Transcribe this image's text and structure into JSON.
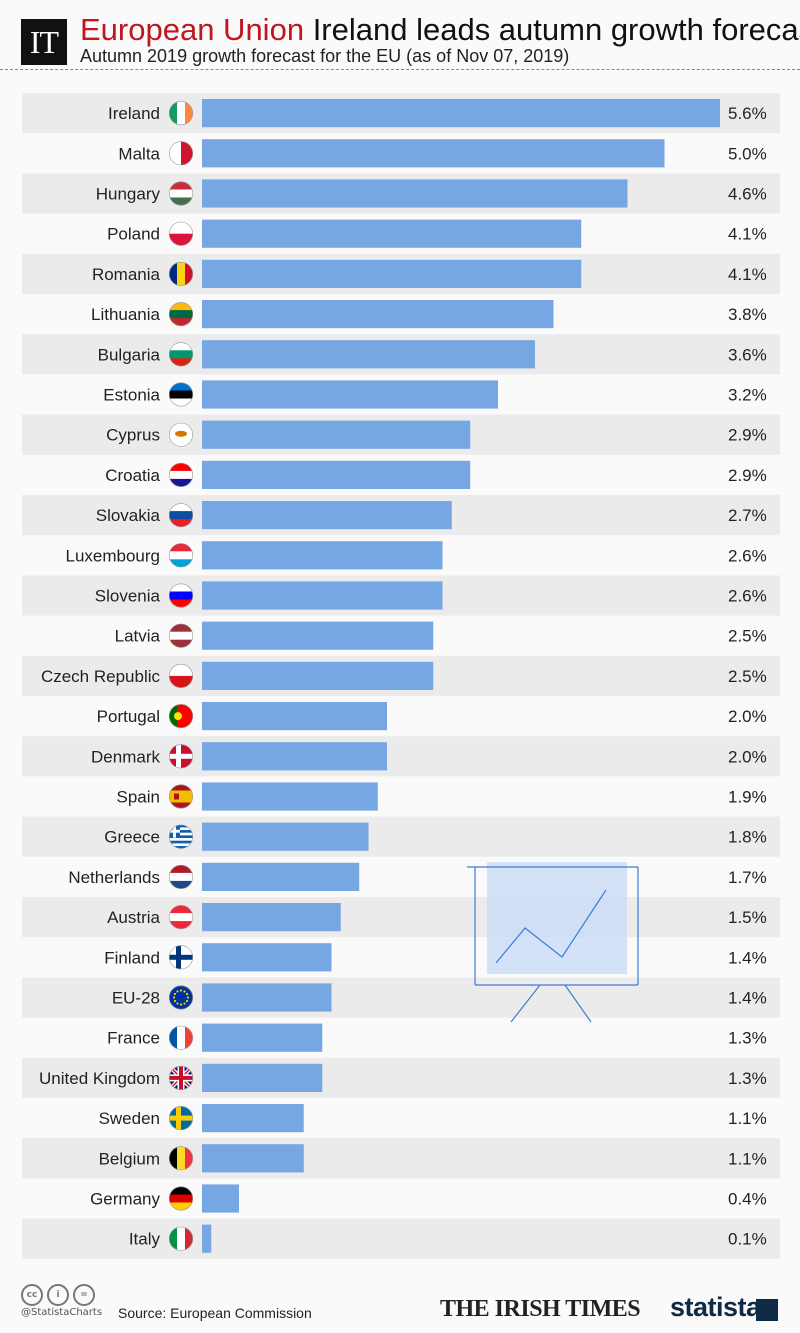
{
  "header": {
    "logo": "IT",
    "title_highlight": "European Union",
    "title": "Ireland leads autumn growth forecast",
    "subtitle": "Autumn 2019 growth forecast for the EU (as of Nov 07, 2019)"
  },
  "footer": {
    "handle": "@StatistaCharts",
    "source": "Source: European Commission",
    "brand_1": "THE IRISH TIMES",
    "brand_2": "statista",
    "license_icons": [
      "cc-icon",
      "attribution-icon",
      "no-derivatives-icon"
    ]
  },
  "colors": {
    "bar": "#77a7e3",
    "row_shade": "#ebebeb",
    "title_accent": "#c0161d"
  },
  "chart_data": {
    "type": "bar",
    "orientation": "horizontal",
    "title": "Ireland leads autumn growth forecast",
    "subtitle": "Autumn 2019 growth forecast for the EU (as of Nov 07, 2019)",
    "unit": "%",
    "xlim": [
      0,
      5.6
    ],
    "grid": false,
    "categories": [
      "Ireland",
      "Malta",
      "Hungary",
      "Poland",
      "Romania",
      "Lithuania",
      "Bulgaria",
      "Estonia",
      "Cyprus",
      "Croatia",
      "Slovakia",
      "Luxembourg",
      "Slovenia",
      "Latvia",
      "Czech Republic",
      "Portugal",
      "Denmark",
      "Spain",
      "Greece",
      "Netherlands",
      "Austria",
      "Finland",
      "EU-28",
      "France",
      "United Kingdom",
      "Sweden",
      "Belgium",
      "Germany",
      "Italy"
    ],
    "values": [
      5.6,
      5.0,
      4.6,
      4.1,
      4.1,
      3.8,
      3.6,
      3.2,
      2.9,
      2.9,
      2.7,
      2.6,
      2.6,
      2.5,
      2.5,
      2.0,
      2.0,
      1.9,
      1.8,
      1.7,
      1.5,
      1.4,
      1.4,
      1.3,
      1.3,
      1.1,
      1.1,
      0.4,
      0.1
    ],
    "labels": [
      "5.6%",
      "5.0%",
      "4.6%",
      "4.1%",
      "4.1%",
      "3.8%",
      "3.6%",
      "3.2%",
      "2.9%",
      "2.9%",
      "2.7%",
      "2.6%",
      "2.6%",
      "2.5%",
      "2.5%",
      "2.0%",
      "2.0%",
      "1.9%",
      "1.8%",
      "1.7%",
      "1.5%",
      "1.4%",
      "1.4%",
      "1.3%",
      "1.3%",
      "1.1%",
      "1.1%",
      "0.4%",
      "0.1%"
    ],
    "flags": [
      {
        "t": "v",
        "c": [
          "#169b62",
          "#ffffff",
          "#ff883e"
        ]
      },
      {
        "t": "v",
        "c": [
          "#ffffff",
          "#cf142b"
        ]
      },
      {
        "t": "h",
        "c": [
          "#cd2a3e",
          "#ffffff",
          "#436f4d"
        ]
      },
      {
        "t": "h",
        "c": [
          "#ffffff",
          "#dc143c"
        ]
      },
      {
        "t": "v",
        "c": [
          "#002b7f",
          "#fcd116",
          "#ce1126"
        ]
      },
      {
        "t": "h",
        "c": [
          "#fdb913",
          "#006a44",
          "#c1272d"
        ]
      },
      {
        "t": "h",
        "c": [
          "#ffffff",
          "#00966e",
          "#d62612"
        ]
      },
      {
        "t": "h",
        "c": [
          "#0072ce",
          "#000000",
          "#ffffff"
        ]
      },
      {
        "t": "h",
        "c": [
          "#ffffff",
          "#ffffff",
          "#ffffff"
        ]
      },
      {
        "t": "h",
        "c": [
          "#ff0000",
          "#ffffff",
          "#171796"
        ]
      },
      {
        "t": "h",
        "c": [
          "#ffffff",
          "#0b4ea2",
          "#ee1c25"
        ]
      },
      {
        "t": "h",
        "c": [
          "#ed2939",
          "#ffffff",
          "#00a1de"
        ]
      },
      {
        "t": "h",
        "c": [
          "#ffffff",
          "#0000ff",
          "#ff0000"
        ]
      },
      {
        "t": "h",
        "c": [
          "#9e3039",
          "#ffffff",
          "#9e3039"
        ]
      },
      {
        "t": "h",
        "c": [
          "#ffffff",
          "#d7141a"
        ]
      },
      {
        "t": "v",
        "c": [
          "#006600",
          "#ff0000",
          "#ff0000"
        ]
      },
      {
        "t": "cross",
        "c": [
          "#c8102e",
          "#ffffff"
        ]
      },
      {
        "t": "h",
        "c": [
          "#aa151b",
          "#f1bf00",
          "#f1bf00",
          "#aa151b"
        ]
      },
      {
        "t": "h",
        "c": [
          "#0d5eaf",
          "#ffffff",
          "#0d5eaf",
          "#ffffff",
          "#0d5eaf",
          "#ffffff",
          "#0d5eaf",
          "#ffffff",
          "#0d5eaf"
        ]
      },
      {
        "t": "h",
        "c": [
          "#ae1c28",
          "#ffffff",
          "#21468b"
        ]
      },
      {
        "t": "h",
        "c": [
          "#ed2939",
          "#ffffff",
          "#ed2939"
        ]
      },
      {
        "t": "cross",
        "c": [
          "#ffffff",
          "#003580"
        ]
      },
      {
        "t": "eu",
        "c": [
          "#003399",
          "#ffcc00"
        ]
      },
      {
        "t": "v",
        "c": [
          "#0055a4",
          "#ffffff",
          "#ef4135"
        ]
      },
      {
        "t": "uk",
        "c": [
          "#012169",
          "#ffffff",
          "#c8102e"
        ]
      },
      {
        "t": "cross",
        "c": [
          "#006aa7",
          "#fecc00"
        ]
      },
      {
        "t": "v",
        "c": [
          "#000000",
          "#fdda24",
          "#ef3340"
        ]
      },
      {
        "t": "h",
        "c": [
          "#000000",
          "#dd0000",
          "#ffce00"
        ]
      },
      {
        "t": "v",
        "c": [
          "#009246",
          "#ffffff",
          "#ce2b37"
        ]
      }
    ]
  }
}
